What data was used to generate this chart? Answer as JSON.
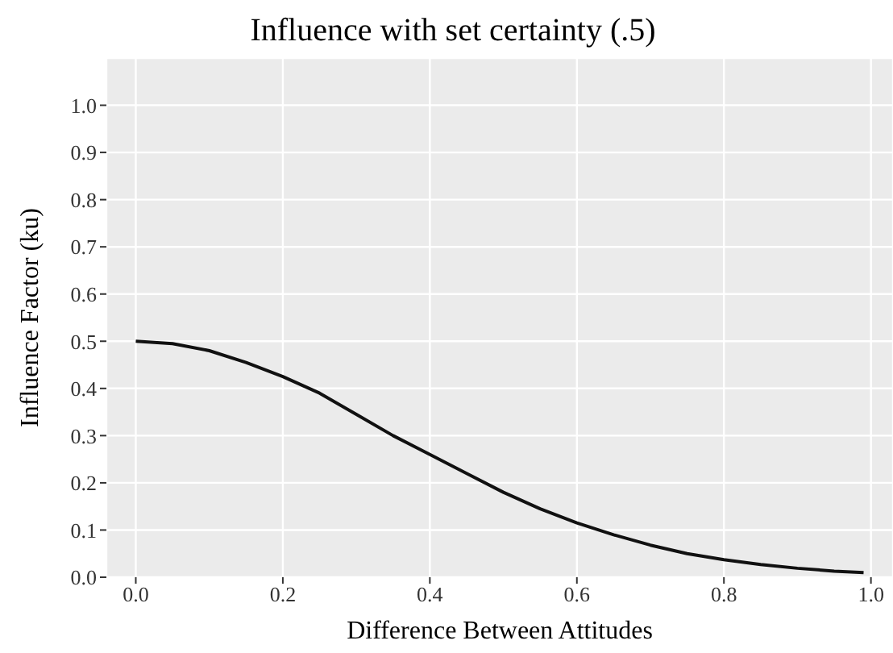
{
  "chart_data": {
    "type": "line",
    "title": "Influence with set certainty (.5)",
    "xlabel": "Difference Between Attitudes",
    "ylabel": "Influence Factor (ku)",
    "x": [
      0,
      0.05,
      0.1,
      0.15,
      0.2,
      0.25,
      0.3,
      0.35,
      0.4,
      0.45,
      0.5,
      0.55,
      0.6,
      0.65,
      0.7,
      0.75,
      0.8,
      0.85,
      0.9,
      0.95,
      0.99
    ],
    "series": [
      {
        "color": "#111111",
        "values": [
          0.5,
          0.495,
          0.48,
          0.455,
          0.425,
          0.39,
          0.345,
          0.3,
          0.26,
          0.22,
          0.18,
          0.145,
          0.115,
          0.09,
          0.068,
          0.05,
          0.037,
          0.027,
          0.019,
          0.013,
          0.01
        ]
      }
    ],
    "xlim": [
      -0.04,
      1.03
    ],
    "ylim": [
      0,
      1.1
    ],
    "xticks": [
      {
        "value": 0,
        "label": "0.0"
      },
      0.2,
      0.4,
      0.6,
      0.8,
      {
        "value": 1,
        "label": "1.0"
      }
    ],
    "yticks": [
      {
        "value": 0,
        "label": "0.0"
      },
      0.1,
      0.2,
      0.3,
      0.4,
      0.5,
      0.6,
      0.7,
      0.8,
      0.9,
      {
        "value": 1,
        "label": "1.0"
      }
    ],
    "grid": true,
    "marker": "none",
    "line_style": "solid"
  }
}
